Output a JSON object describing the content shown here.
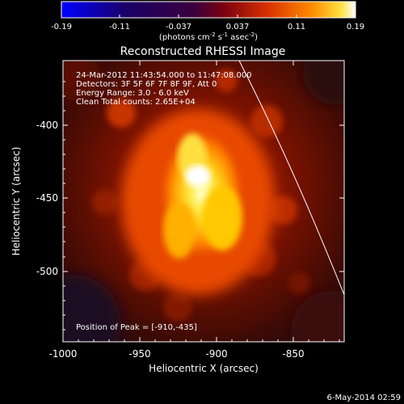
{
  "colorbar": {
    "ticks": [
      "-0.19",
      "-0.11",
      "-0.037",
      "0.037",
      "0.11",
      "0.19"
    ],
    "units_prefix": "(photons cm",
    "units_exp1": "-2",
    "units_mid": " s",
    "units_exp2": "-1",
    "units_mid2": " asec",
    "units_exp3": "-2",
    "units_suffix": ")"
  },
  "title": "Reconstructed RHESSI Image",
  "info": {
    "line1": "24-Mar-2012 11:43:54.000 to 11:47:08.000",
    "line2": "Detectors: 3F 5F 6F 7F 8F 9F, Att 0",
    "line3": "Energy Range: 3.0 - 6.0 keV",
    "line4": "Clean     Total counts: 2.65E+04"
  },
  "peak_label": "Position of Peak = [-910,-435]",
  "axes": {
    "xlabel": "Heliocentric X (arcsec)",
    "ylabel": "Heliocentric Y (arcsec)",
    "xticks": [
      "-1000",
      "-950",
      "-900",
      "-850"
    ],
    "yticks": [
      "-400",
      "-450",
      "-500"
    ]
  },
  "timestamp": "6-May-2014 02:59"
}
